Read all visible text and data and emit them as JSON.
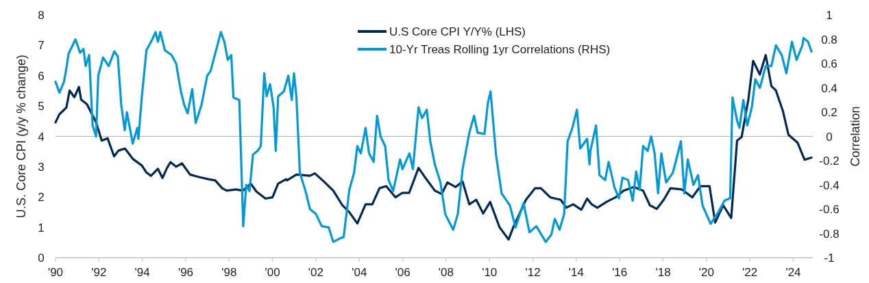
{
  "chart_data": {
    "type": "line",
    "ylabel": "U.S. Core CPI (y/y % change)",
    "y2label": "Correlation",
    "xlim": [
      1990,
      2024.9
    ],
    "xticks": [
      {
        "value": 1990,
        "label": "'90"
      },
      {
        "value": 1992,
        "label": "'92"
      },
      {
        "value": 1994,
        "label": "'94"
      },
      {
        "value": 1996,
        "label": "'96"
      },
      {
        "value": 1998,
        "label": "'98"
      },
      {
        "value": 2000,
        "label": "'00"
      },
      {
        "value": 2002,
        "label": "'02"
      },
      {
        "value": 2004,
        "label": "'04"
      },
      {
        "value": 2006,
        "label": "'06"
      },
      {
        "value": 2008,
        "label": "'08"
      },
      {
        "value": 2010,
        "label": "'10"
      },
      {
        "value": 2012,
        "label": "'12"
      },
      {
        "value": 2014,
        "label": "'14"
      },
      {
        "value": 2016,
        "label": "'16"
      },
      {
        "value": 2018,
        "label": "'18"
      },
      {
        "value": 2020,
        "label": "'20"
      },
      {
        "value": 2022,
        "label": "'22"
      },
      {
        "value": 2024,
        "label": "'24"
      }
    ],
    "ylim": [
      0,
      8
    ],
    "yticks": [
      0,
      1,
      2,
      3,
      4,
      5,
      6,
      7,
      8
    ],
    "y2lim": [
      -1,
      1
    ],
    "y2ticks": [
      -1,
      -0.8,
      -0.6,
      -0.4,
      -0.2,
      0,
      0.2,
      0.4,
      0.6,
      0.8,
      1
    ],
    "legend": "top",
    "grid": false,
    "ref_lines": [
      {
        "axis": "y2",
        "value": 0,
        "color": "#b0b0b0"
      }
    ],
    "series": [
      {
        "name": "U.S Core CPI Y/Y% (LHS)",
        "color": "#002855",
        "x": [
          1990.0,
          1990.18,
          1990.34,
          1990.5,
          1990.65,
          1990.87,
          1991.08,
          1991.18,
          1991.45,
          1991.87,
          1992.13,
          1992.4,
          1992.7,
          1992.9,
          1993.2,
          1993.56,
          1993.98,
          1994.19,
          1994.4,
          1994.72,
          1994.93,
          1995.14,
          1995.3,
          1995.56,
          1995.83,
          1996.2,
          1996.62,
          1997.04,
          1997.36,
          1997.68,
          1997.89,
          1998.31,
          1998.63,
          1999.0,
          1999.26,
          1999.68,
          2000.0,
          2000.26,
          2000.63,
          2000.67,
          2001.1,
          2001.73,
          2001.95,
          2002.37,
          2002.8,
          2003.22,
          2003.54,
          2003.91,
          2004.29,
          2004.6,
          2004.93,
          2005.24,
          2005.67,
          2005.99,
          2006.3,
          2006.73,
          2007.05,
          2007.48,
          2007.8,
          2008.06,
          2008.44,
          2008.76,
          2009.07,
          2009.39,
          2009.71,
          2010.03,
          2010.46,
          2010.88,
          2011.1,
          2011.68,
          2012.1,
          2012.37,
          2012.8,
          2013.28,
          2013.54,
          2013.86,
          2014.23,
          2014.5,
          2014.71,
          2014.97,
          2015.39,
          2015.81,
          2016.18,
          2016.65,
          2017.08,
          2017.39,
          2017.71,
          2018.03,
          2018.34,
          2018.87,
          2019.35,
          2019.72,
          2020.14,
          2020.4,
          2020.77,
          2021.14,
          2021.41,
          2021.62,
          2021.93,
          2022.15,
          2022.46,
          2022.73,
          2022.99,
          2023.2,
          2023.52,
          2023.78,
          2024.2,
          2024.52,
          2024.84
        ],
        "values": [
          4.46,
          4.73,
          4.84,
          4.95,
          5.51,
          5.29,
          5.63,
          5.21,
          5.06,
          4.46,
          3.86,
          3.94,
          3.34,
          3.53,
          3.6,
          3.26,
          3.04,
          2.81,
          2.7,
          2.93,
          2.63,
          2.96,
          3.15,
          3.0,
          3.11,
          2.74,
          2.66,
          2.59,
          2.55,
          2.29,
          2.21,
          2.25,
          2.21,
          2.44,
          2.18,
          1.95,
          1.99,
          2.44,
          2.59,
          2.55,
          2.74,
          2.7,
          2.78,
          2.51,
          2.21,
          1.73,
          1.5,
          1.13,
          1.76,
          1.76,
          2.29,
          2.36,
          1.99,
          2.14,
          2.14,
          2.96,
          2.63,
          2.21,
          2.1,
          2.48,
          2.33,
          2.51,
          1.76,
          1.91,
          1.46,
          1.84,
          1.01,
          0.6,
          1.01,
          1.91,
          2.29,
          2.29,
          1.99,
          1.91,
          1.65,
          1.76,
          1.58,
          1.95,
          1.76,
          1.65,
          1.84,
          1.99,
          2.21,
          2.33,
          2.21,
          1.73,
          1.61,
          1.91,
          2.29,
          2.25,
          1.99,
          2.36,
          2.36,
          1.16,
          1.73,
          1.31,
          3.86,
          3.98,
          5.21,
          6.49,
          6.04,
          6.68,
          5.66,
          5.51,
          4.84,
          4.05,
          3.79,
          3.23,
          3.3
        ]
      },
      {
        "name": "10-Yr Treas Rolling 1yr Correlations (RHS)",
        "color": "#009ad9",
        "axis": "y2",
        "x": [
          1990.0,
          1990.18,
          1990.39,
          1990.5,
          1990.6,
          1990.92,
          1991.13,
          1991.29,
          1991.39,
          1991.55,
          1991.71,
          1991.87,
          1991.97,
          1992.19,
          1992.45,
          1992.71,
          1992.87,
          1993.03,
          1993.19,
          1993.29,
          1993.56,
          1993.77,
          1993.82,
          1993.98,
          1994.19,
          1994.46,
          1994.61,
          1994.72,
          1994.83,
          1995.04,
          1995.35,
          1995.56,
          1995.78,
          1995.93,
          1996.09,
          1996.3,
          1996.46,
          1996.73,
          1996.99,
          1997.15,
          1997.31,
          1997.46,
          1997.62,
          1997.78,
          1997.94,
          1998.1,
          1998.2,
          1998.47,
          1998.65,
          1998.79,
          1998.94,
          1999.1,
          1999.31,
          1999.46,
          1999.62,
          1999.73,
          1999.89,
          2000.05,
          2000.15,
          2000.26,
          2000.52,
          2000.73,
          2000.89,
          2000.99,
          2001.1,
          2001.26,
          2001.52,
          2001.73,
          2002.0,
          2002.27,
          2002.59,
          2002.8,
          2003.12,
          2003.28,
          2003.54,
          2003.76,
          2003.91,
          2004.07,
          2004.29,
          2004.45,
          2004.66,
          2004.82,
          2004.98,
          2005.19,
          2005.35,
          2005.56,
          2005.88,
          2005.99,
          2006.31,
          2006.47,
          2006.73,
          2006.89,
          2007.11,
          2007.27,
          2007.48,
          2007.74,
          2007.96,
          2008.33,
          2008.54,
          2008.76,
          2009.07,
          2009.29,
          2009.45,
          2009.77,
          2009.93,
          2010.05,
          2010.3,
          2010.56,
          2010.94,
          2011.2,
          2011.57,
          2011.84,
          2012.16,
          2012.59,
          2012.85,
          2013.01,
          2013.23,
          2013.44,
          2013.6,
          2013.82,
          2014.03,
          2014.18,
          2014.5,
          2014.61,
          2014.65,
          2014.91,
          2015.07,
          2015.33,
          2015.49,
          2015.76,
          2015.97,
          2016.13,
          2016.39,
          2016.6,
          2016.76,
          2016.92,
          2017.08,
          2017.29,
          2017.45,
          2017.61,
          2017.77,
          2017.92,
          2018.14,
          2018.45,
          2018.61,
          2018.82,
          2018.98,
          2019.14,
          2019.4,
          2019.61,
          2019.82,
          2020.19,
          2020.56,
          2020.83,
          2021.09,
          2021.2,
          2021.41,
          2021.52,
          2021.7,
          2021.88,
          2022.09,
          2022.25,
          2022.46,
          2022.73,
          2022.99,
          2023.2,
          2023.47,
          2023.68,
          2023.94,
          2024.15,
          2024.42,
          2024.47,
          2024.68,
          2024.84
        ],
        "values": [
          0.45,
          0.36,
          0.45,
          0.56,
          0.68,
          0.8,
          0.69,
          0.72,
          0.58,
          0.67,
          0.09,
          0.0,
          0.5,
          0.65,
          0.58,
          0.7,
          0.66,
          0.26,
          0.05,
          0.2,
          -0.06,
          0.07,
          -0.02,
          0.33,
          0.71,
          0.8,
          0.86,
          0.78,
          0.86,
          0.71,
          0.67,
          0.6,
          0.37,
          0.26,
          0.19,
          0.39,
          0.11,
          0.26,
          0.5,
          0.54,
          0.65,
          0.75,
          0.86,
          0.78,
          0.63,
          0.67,
          0.32,
          0.3,
          -0.74,
          -0.4,
          -0.45,
          -0.15,
          -0.12,
          -0.08,
          0.52,
          0.33,
          0.43,
          0.24,
          -0.12,
          0.33,
          0.37,
          0.5,
          0.3,
          0.52,
          0.33,
          -0.3,
          -0.45,
          -0.6,
          -0.64,
          -0.74,
          -0.75,
          -0.87,
          -0.84,
          -0.83,
          -0.44,
          -0.3,
          -0.08,
          -0.14,
          0.07,
          -0.14,
          -0.21,
          0.17,
          0.0,
          -0.08,
          -0.36,
          -0.45,
          -0.19,
          -0.27,
          -0.14,
          -0.27,
          0.24,
          0.15,
          0.22,
          -0.04,
          -0.23,
          -0.38,
          -0.64,
          -0.77,
          -0.64,
          -0.27,
          0.03,
          0.17,
          0.03,
          0.02,
          0.28,
          0.37,
          -0.15,
          -0.47,
          -0.57,
          -0.75,
          -0.55,
          -0.79,
          -0.74,
          -0.87,
          -0.81,
          -0.68,
          -0.77,
          -0.64,
          -0.04,
          0.07,
          0.22,
          -0.1,
          -0.02,
          -0.23,
          -0.12,
          0.09,
          -0.32,
          -0.36,
          -0.21,
          -0.42,
          -0.51,
          -0.34,
          -0.36,
          -0.53,
          -0.29,
          -0.44,
          -0.08,
          -0.12,
          0.0,
          -0.14,
          -0.47,
          -0.14,
          -0.38,
          -0.3,
          -0.19,
          -0.04,
          -0.47,
          -0.19,
          -0.4,
          -0.32,
          -0.57,
          -0.72,
          -0.62,
          -0.53,
          -0.51,
          0.32,
          0.13,
          0.07,
          0.3,
          0.09,
          0.24,
          0.47,
          0.4,
          0.58,
          0.58,
          0.75,
          0.67,
          0.52,
          0.78,
          0.63,
          0.75,
          0.81,
          0.78,
          0.7
        ]
      }
    ]
  }
}
